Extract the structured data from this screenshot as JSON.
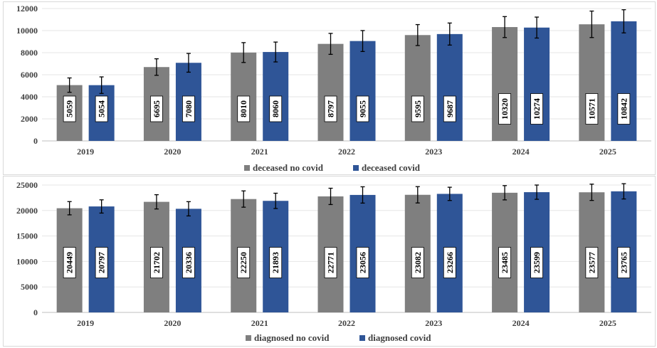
{
  "chart_data": [
    {
      "type": "bar",
      "categories": [
        "2019",
        "2020",
        "2021",
        "2022",
        "2023",
        "2024",
        "2025"
      ],
      "series": [
        {
          "name": "deceased no covid",
          "color": "#7f7f7f",
          "values": [
            5059,
            6695,
            8010,
            8797,
            9595,
            10320,
            10571
          ],
          "errors": [
            650,
            750,
            900,
            950,
            950,
            950,
            1200
          ]
        },
        {
          "name": "deceased covid",
          "color": "#2f5597",
          "values": [
            5054,
            7080,
            8060,
            9055,
            9687,
            10274,
            10842
          ],
          "errors": [
            750,
            850,
            900,
            950,
            1000,
            950,
            1050
          ]
        }
      ],
      "y_ticks": [
        "0",
        "2000",
        "4000",
        "6000",
        "8000",
        "10000",
        "12000"
      ],
      "ylim": [
        0,
        12000
      ],
      "grid": true,
      "legend": "bottom",
      "error_bars": true,
      "data_labels": true
    },
    {
      "type": "bar",
      "categories": [
        "2019",
        "2020",
        "2021",
        "2022",
        "2023",
        "2024",
        "2025"
      ],
      "series": [
        {
          "name": "diagnosed no covid",
          "color": "#7f7f7f",
          "values": [
            20449,
            21702,
            22250,
            22771,
            23082,
            23485,
            23577
          ],
          "errors": [
            1300,
            1400,
            1600,
            1600,
            1600,
            1400,
            1600
          ]
        },
        {
          "name": "diagnosed covid",
          "color": "#2f5597",
          "values": [
            20797,
            20336,
            21893,
            23056,
            23266,
            23599,
            23765
          ],
          "errors": [
            1300,
            1400,
            1500,
            1600,
            1300,
            1400,
            1500
          ]
        }
      ],
      "y_ticks": [
        "0",
        "5000",
        "10000",
        "15000",
        "20000",
        "25000"
      ],
      "ylim": [
        0,
        25000
      ],
      "grid": true,
      "legend": "bottom",
      "error_bars": true,
      "data_labels": true
    }
  ]
}
